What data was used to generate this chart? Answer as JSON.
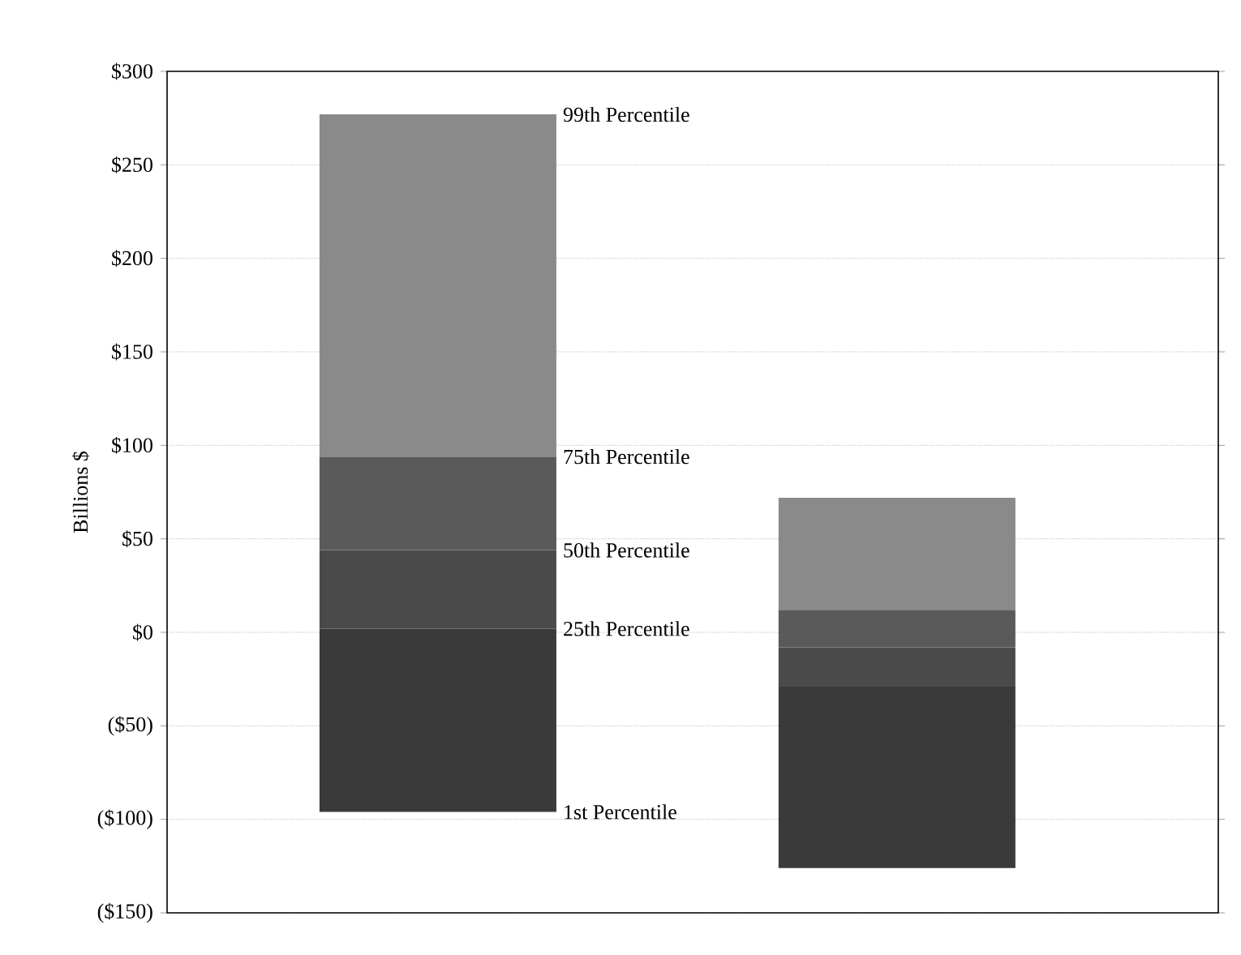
{
  "chart_data": {
    "type": "bar",
    "ylabel": "Billions $",
    "categories": [
      null,
      null
    ],
    "series": [
      {
        "color": "#3a3a3a",
        "base": [
          -96,
          -126
        ],
        "values": [
          98,
          97
        ]
      },
      {
        "color": "#4a4a4a",
        "base": [
          2,
          -29
        ],
        "values": [
          42,
          21
        ]
      },
      {
        "color": "#5a5a5a",
        "base": [
          44,
          -8
        ],
        "values": [
          50,
          20
        ]
      },
      {
        "color": "#8a8a8a",
        "base": [
          94,
          12
        ],
        "values": [
          183,
          60
        ]
      }
    ],
    "ylim": [
      -150,
      300
    ],
    "yticks": [
      {
        "value": -150,
        "label": "($150)"
      },
      {
        "value": -100,
        "label": "($100)"
      },
      {
        "value": -50,
        "label": "($50)"
      },
      {
        "value": 0,
        "label": "$0"
      },
      {
        "value": 50,
        "label": "$50"
      },
      {
        "value": 100,
        "label": "$100"
      },
      {
        "value": 150,
        "label": "$150"
      },
      {
        "value": 200,
        "label": "$200"
      },
      {
        "value": 250,
        "label": "$250"
      },
      {
        "value": 300,
        "label": "$300"
      }
    ],
    "grid": "y",
    "annotations": [
      "99th Percentile",
      "75th Percentile",
      "50th Percentile",
      "25th Percentile",
      "1st Percentile"
    ]
  }
}
